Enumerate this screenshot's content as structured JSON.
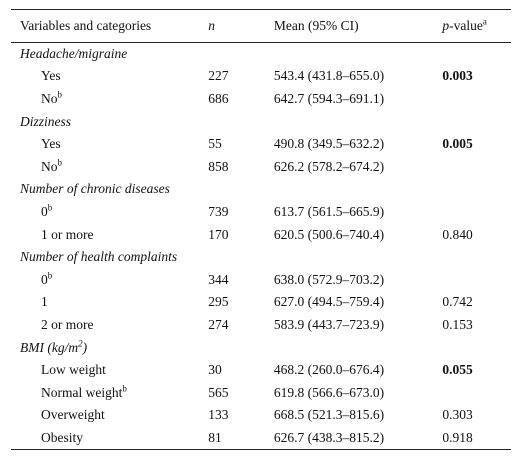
{
  "header": {
    "col1": "Variables and categories",
    "col2": "n",
    "col3": "Mean (95% CI)",
    "col4_main": "p",
    "col4_rest": "-value",
    "col4_sup": "a"
  },
  "rows": [
    {
      "type": "category",
      "label": "Headache/migraine"
    },
    {
      "type": "item",
      "label": "Yes",
      "sup": "",
      "n": "227",
      "mean": "543.4 (431.8–655.0)",
      "p": "0.003",
      "bold": true
    },
    {
      "type": "item",
      "label": "No",
      "sup": "b",
      "n": "686",
      "mean": "642.7 (594.3–691.1)",
      "p": "",
      "bold": false
    },
    {
      "type": "category",
      "label": "Dizziness"
    },
    {
      "type": "item",
      "label": "Yes",
      "sup": "",
      "n": "55",
      "mean": "490.8 (349.5–632.2)",
      "p": "0.005",
      "bold": true
    },
    {
      "type": "item",
      "label": "No",
      "sup": "b",
      "n": "858",
      "mean": "626.2 (578.2–674.2)",
      "p": "",
      "bold": false
    },
    {
      "type": "category",
      "label": "Number of chronic diseases"
    },
    {
      "type": "item",
      "label": "0",
      "sup": "b",
      "n": "739",
      "mean": "613.7 (561.5–665.9)",
      "p": "",
      "bold": false
    },
    {
      "type": "item",
      "label": "1 or more",
      "sup": "",
      "n": "170",
      "mean": "620.5 (500.6–740.4)",
      "p": "0.840",
      "bold": false
    },
    {
      "type": "category",
      "label": "Number of health complaints"
    },
    {
      "type": "item",
      "label": "0",
      "sup": "b",
      "n": "344",
      "mean": "638.0 (572.9–703.2)",
      "p": "",
      "bold": false
    },
    {
      "type": "item",
      "label": "1",
      "sup": "",
      "n": "295",
      "mean": "627.0 (494.5–759.4)",
      "p": "0.742",
      "bold": false
    },
    {
      "type": "item",
      "label": "2 or more",
      "sup": "",
      "n": "274",
      "mean": "583.9 (443.7–723.9)",
      "p": "0.153",
      "bold": false
    },
    {
      "type": "category",
      "label": "BMI (kg/m",
      "label_sup": "2",
      "label_end": ")"
    },
    {
      "type": "item",
      "label": "Low weight",
      "sup": "",
      "n": "30",
      "mean": "468.2 (260.0–676.4)",
      "p": "0.055",
      "bold": true
    },
    {
      "type": "item",
      "label": "Normal weight",
      "sup": "b",
      "n": "565",
      "mean": "619.8 (566.6–673.0)",
      "p": "",
      "bold": false
    },
    {
      "type": "item",
      "label": "Overweight",
      "sup": "",
      "n": "133",
      "mean": "668.5 (521.3–815.6)",
      "p": "0.303",
      "bold": false
    },
    {
      "type": "item",
      "label": "Obesity",
      "sup": "",
      "n": "81",
      "mean": "626.7 (438.3–815.2)",
      "p": "0.918",
      "bold": false
    }
  ]
}
